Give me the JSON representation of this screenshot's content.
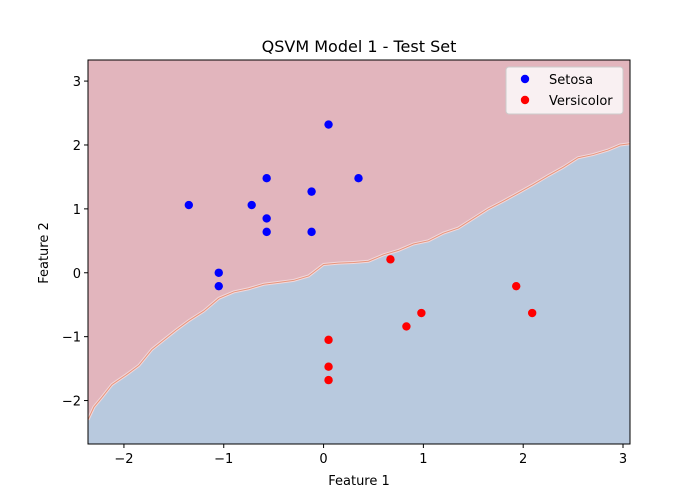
{
  "chart_data": {
    "type": "scatter",
    "title": "QSVM Model 1 - Test Set",
    "xlabel": "Feature 1",
    "ylabel": "Feature 2",
    "xlim": [
      -2.36,
      3.07
    ],
    "ylim": [
      -2.68,
      3.33
    ],
    "xticks": [
      -2,
      -1,
      0,
      1,
      2,
      3
    ],
    "xtick_labels": [
      "−2",
      "−1",
      "0",
      "1",
      "2",
      "3"
    ],
    "yticks": [
      -2,
      -1,
      0,
      1,
      2,
      3
    ],
    "ytick_labels": [
      "−2",
      "−1",
      "0",
      "1",
      "2",
      "3"
    ],
    "grid": false,
    "legend_position": "top-right",
    "decision_regions": {
      "upper_class": "Setosa",
      "upper_color": "#e2b5bd",
      "lower_class": "Versicolor",
      "lower_color": "#b8c9de",
      "boundary_x": [
        -2.36,
        -2.3,
        -2.22,
        -2.12,
        -1.98,
        -1.85,
        -1.72,
        -1.6,
        -1.48,
        -1.35,
        -1.2,
        -1.05,
        -0.9,
        -0.75,
        -0.6,
        -0.45,
        -0.3,
        -0.15,
        0.0,
        0.15,
        0.3,
        0.45,
        0.6,
        0.75,
        0.9,
        1.05,
        1.2,
        1.35,
        1.5,
        1.65,
        1.8,
        1.95,
        2.1,
        2.25,
        2.4,
        2.55,
        2.7,
        2.85,
        2.97,
        3.07
      ],
      "boundary_y": [
        -2.3,
        -2.1,
        -1.95,
        -1.75,
        -1.6,
        -1.45,
        -1.2,
        -1.05,
        -0.9,
        -0.75,
        -0.6,
        -0.4,
        -0.3,
        -0.25,
        -0.18,
        -0.15,
        -0.12,
        -0.05,
        0.13,
        0.15,
        0.16,
        0.18,
        0.28,
        0.35,
        0.45,
        0.5,
        0.62,
        0.7,
        0.85,
        1.0,
        1.12,
        1.25,
        1.38,
        1.52,
        1.65,
        1.8,
        1.85,
        1.92,
        2.0,
        2.02
      ]
    },
    "series": [
      {
        "name": "Setosa",
        "color": "#0000ff",
        "x": [
          0.05,
          0.35,
          -0.57,
          -0.12,
          -1.35,
          -0.72,
          -0.57,
          -0.57,
          -0.12,
          -1.05,
          -1.05
        ],
        "y": [
          2.32,
          1.48,
          1.48,
          1.27,
          1.06,
          1.06,
          0.85,
          0.64,
          0.64,
          0.0,
          -0.21
        ]
      },
      {
        "name": "Versicolor",
        "color": "#ff0000",
        "x": [
          0.67,
          1.93,
          0.98,
          2.09,
          0.83,
          0.05,
          0.05,
          0.05
        ],
        "y": [
          0.21,
          -0.21,
          -0.63,
          -0.63,
          -0.84,
          -1.05,
          -1.47,
          -1.68
        ]
      }
    ]
  }
}
